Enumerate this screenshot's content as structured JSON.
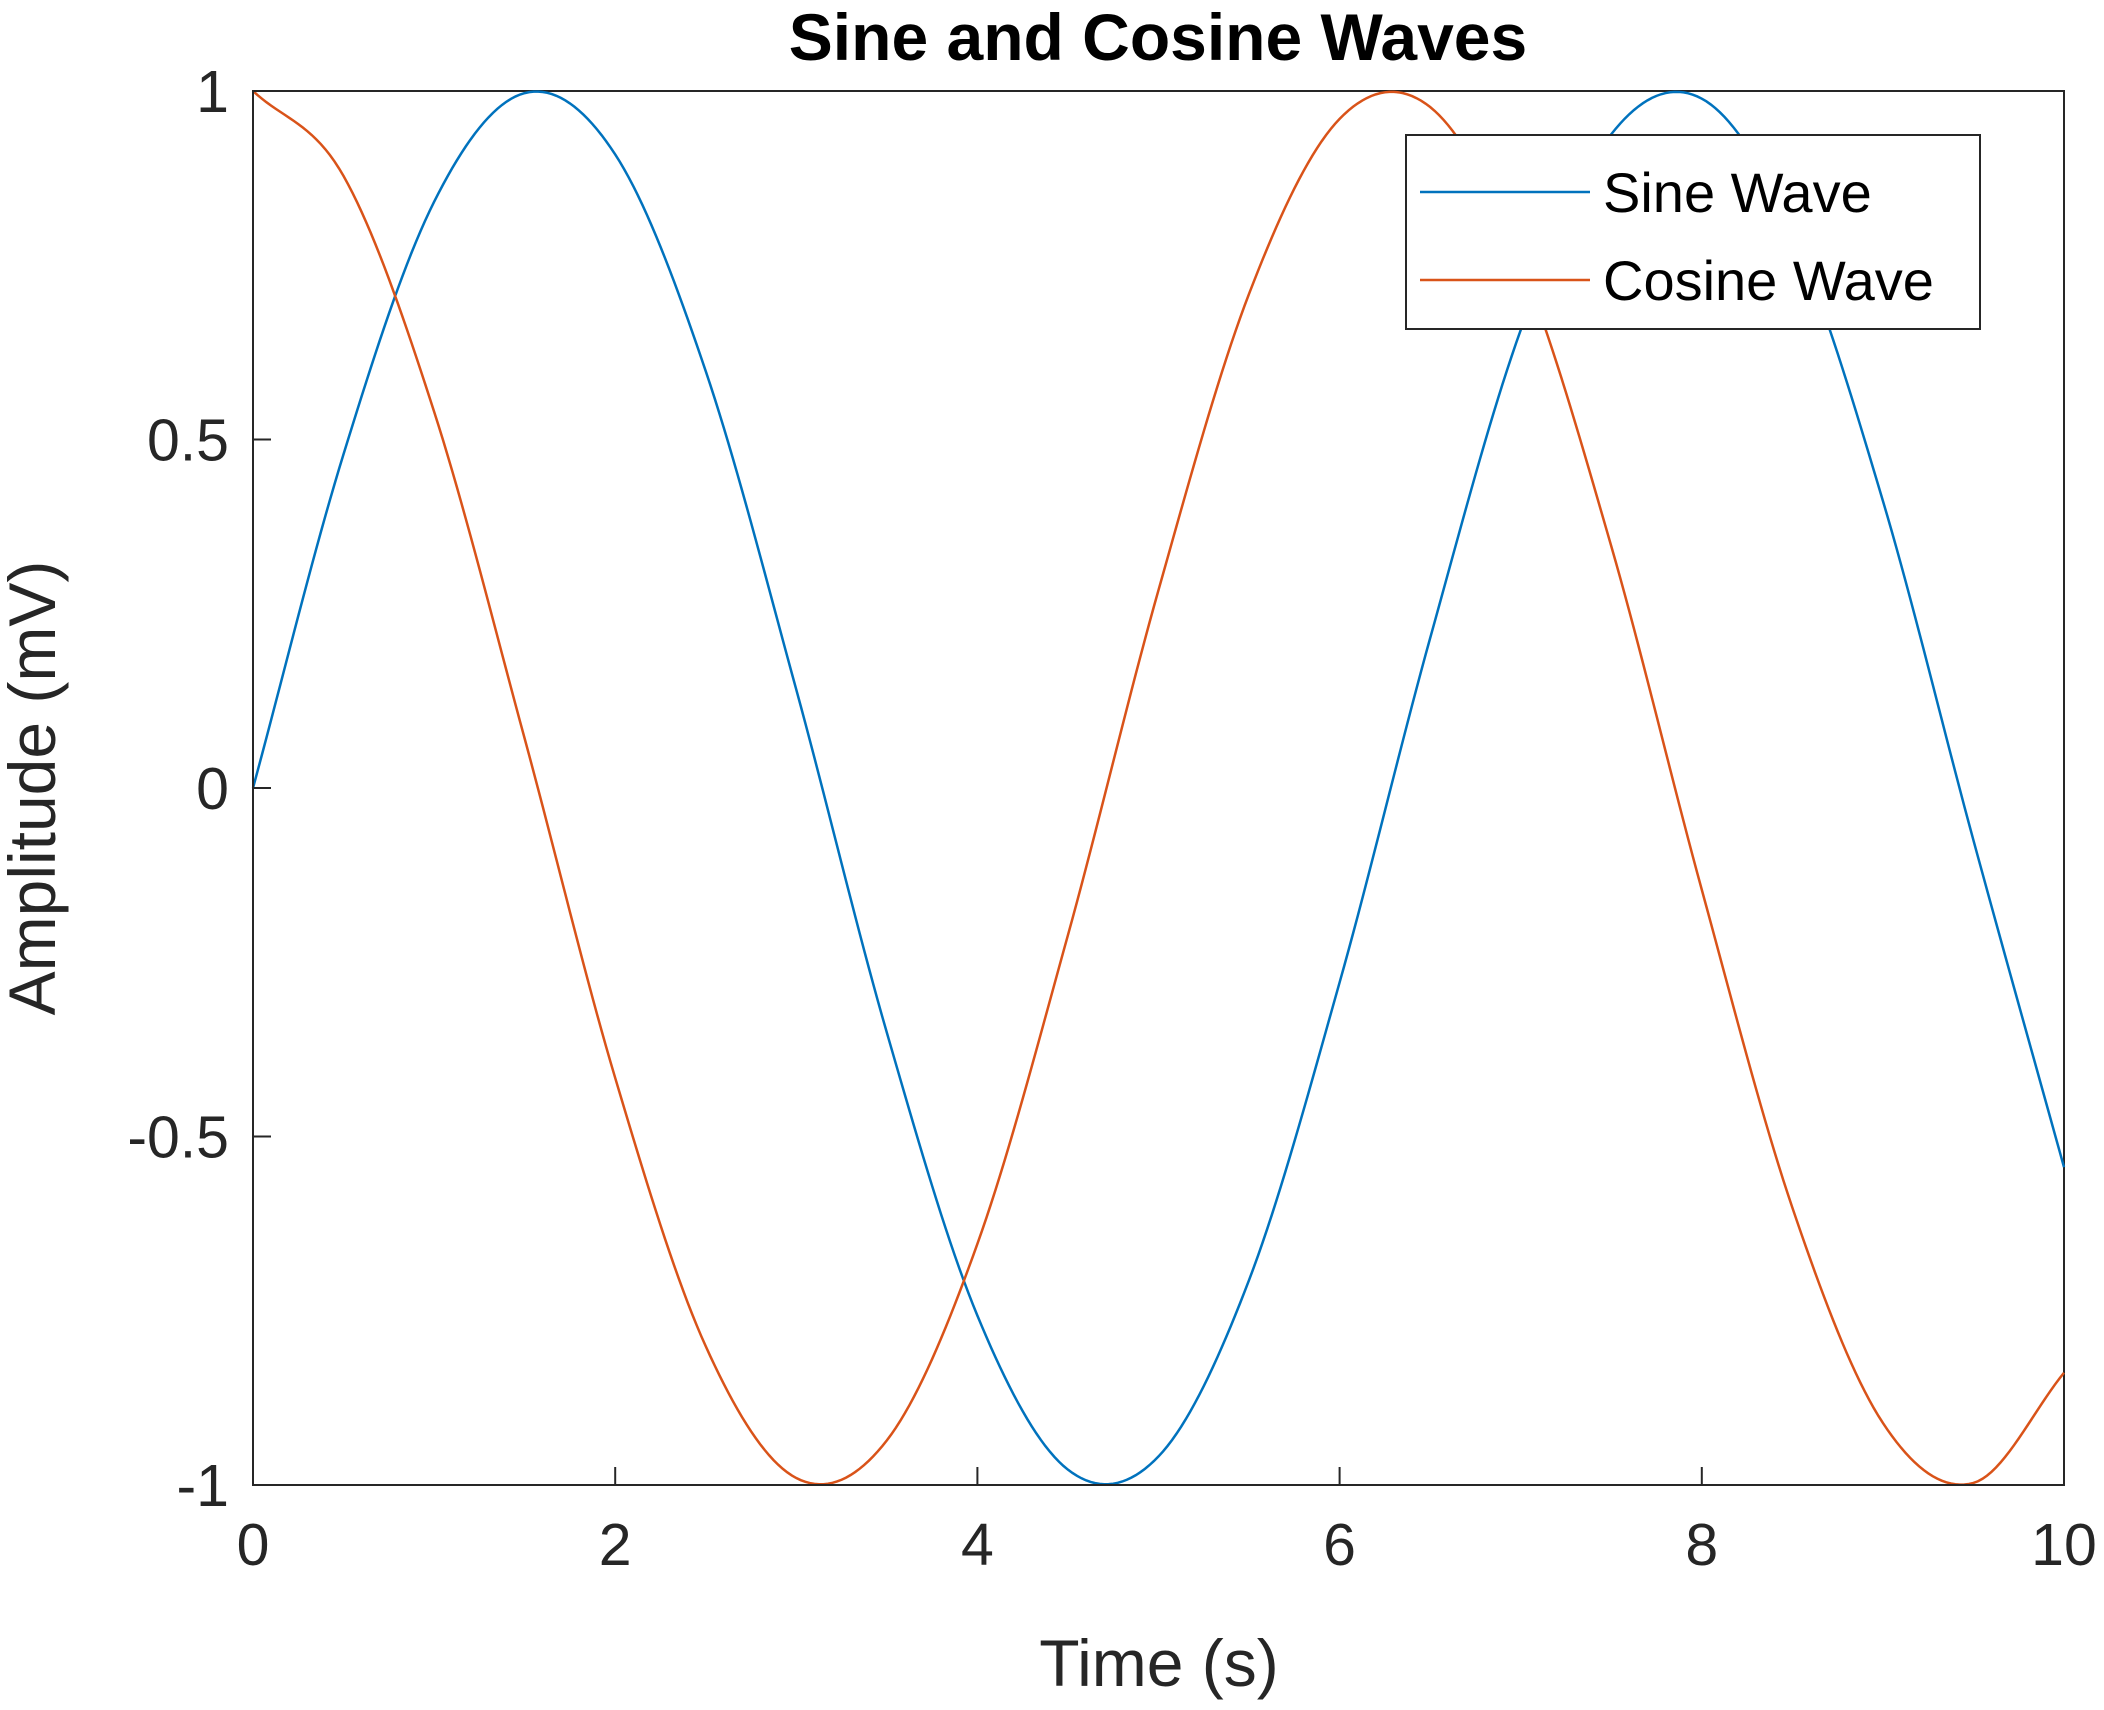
{
  "chart_data": {
    "type": "line",
    "title": "Sine and Cosine Waves",
    "xlabel": "Time (s)",
    "ylabel": "Amplitude (mV)",
    "xlim": [
      0,
      10
    ],
    "ylim": [
      -1,
      1
    ],
    "x_ticks": [
      0,
      2,
      4,
      6,
      8,
      10
    ],
    "x_tick_labels": [
      "0",
      "2",
      "4",
      "6",
      "8",
      "10"
    ],
    "y_ticks": [
      -1,
      -0.5,
      0,
      0.5,
      1
    ],
    "y_tick_labels": [
      "-1",
      "-0.5",
      "0",
      "0.5",
      "1"
    ],
    "grid": false,
    "legend_location": "top-right",
    "x": [
      0,
      0.5,
      1,
      1.5,
      2,
      2.5,
      3,
      3.5,
      4,
      4.5,
      5,
      5.5,
      6,
      6.5,
      7,
      7.5,
      8,
      8.5,
      9,
      9.5,
      10
    ],
    "series": [
      {
        "name": "Sine Wave",
        "color": "#0072BD",
        "values": [
          0,
          0.479,
          0.841,
          0.997,
          0.909,
          0.598,
          0.141,
          -0.351,
          -0.757,
          -0.978,
          -0.959,
          -0.706,
          -0.279,
          0.215,
          0.657,
          0.938,
          0.989,
          0.798,
          0.412,
          -0.075,
          -0.544
        ]
      },
      {
        "name": "Cosine Wave",
        "color": "#D95319",
        "values": [
          1,
          0.878,
          0.54,
          0.071,
          -0.416,
          -0.801,
          -0.99,
          -0.936,
          -0.654,
          -0.211,
          0.284,
          0.709,
          0.96,
          0.977,
          0.754,
          0.347,
          -0.146,
          -0.602,
          -0.911,
          -0.997,
          -0.839
        ]
      }
    ]
  }
}
